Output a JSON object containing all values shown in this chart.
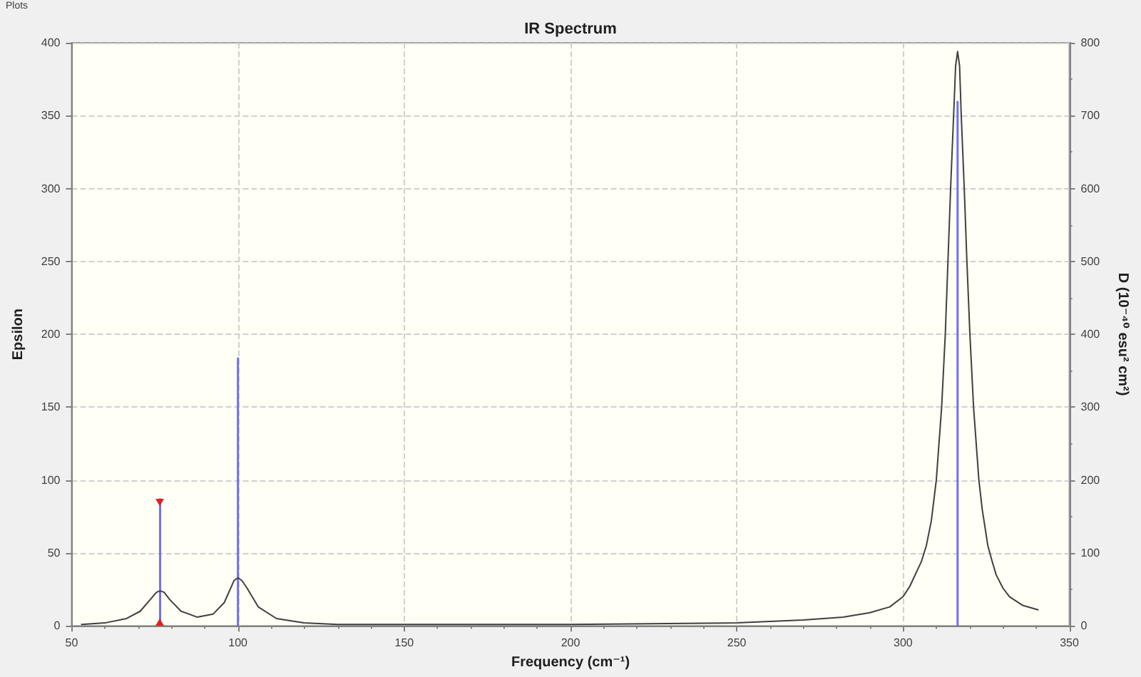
{
  "chart_data": {
    "type": "line",
    "title": "IR Spectrum",
    "xlabel": "Frequency (cm⁻¹)",
    "ylabel": "Epsilon",
    "y2label": "D (10⁻⁴⁰ esu² cm²)",
    "annotations": [
      "Plots"
    ],
    "series": [
      {
        "color": "#404040",
        "x": [
          53,
          60,
          66.5,
          70.6,
          74,
          75.5,
          76.6,
          77.8,
          79.5,
          82.9,
          87.7,
          92.5,
          95.9,
          98.8,
          100,
          101.2,
          102.7,
          106.1,
          111.6,
          119.8,
          130,
          150,
          200,
          250,
          270,
          282,
          290,
          296,
          300,
          302,
          305.5,
          307,
          308.5,
          310,
          311.6,
          312.7,
          313.5,
          314.3,
          315.2,
          315.8,
          316.4,
          317,
          317.5,
          318.4,
          319.2,
          320.1,
          321.2,
          322.8,
          323.8,
          325.5,
          326.7,
          328,
          330,
          332,
          336,
          340.6
        ],
        "values": [
          1,
          2,
          5,
          10,
          19,
          23,
          24,
          23,
          18,
          10,
          6,
          8,
          16,
          31,
          33,
          31,
          26,
          13,
          5,
          2,
          1,
          1,
          1,
          2,
          4,
          6,
          9,
          13,
          20,
          27,
          44,
          55,
          72,
          100,
          150,
          200,
          250,
          300,
          350,
          384,
          394,
          384,
          350,
          300,
          250,
          200,
          150,
          100,
          80,
          55,
          45,
          35,
          26,
          20,
          14,
          11
        ]
      },
      {
        "type": "bar",
        "color": "#7070f0",
        "axis": "y2",
        "x": [
          76.6,
          100,
          316.4
        ],
        "values": [
          175,
          368,
          720
        ]
      }
    ],
    "xlim": [
      50,
      350
    ],
    "xticks": [
      50,
      {
        "value": 60,
        "label": null
      },
      {
        "value": 70,
        "label": null
      },
      {
        "value": 80,
        "label": null
      },
      {
        "value": 90,
        "label": null
      },
      100,
      {
        "value": 110,
        "label": null
      },
      {
        "value": 120,
        "label": null
      },
      {
        "value": 130,
        "label": null
      },
      {
        "value": 140,
        "label": null
      },
      150,
      {
        "value": 160,
        "label": null
      },
      {
        "value": 170,
        "label": null
      },
      {
        "value": 180,
        "label": null
      },
      {
        "value": 190,
        "label": null
      },
      200,
      {
        "value": 210,
        "label": null
      },
      {
        "value": 220,
        "label": null
      },
      {
        "value": 230,
        "label": null
      },
      {
        "value": 240,
        "label": null
      },
      250,
      {
        "value": 260,
        "label": null
      },
      {
        "value": 270,
        "label": null
      },
      {
        "value": 280,
        "label": null
      },
      {
        "value": 290,
        "label": null
      },
      300,
      {
        "value": 310,
        "label": null
      },
      {
        "value": 320,
        "label": null
      },
      {
        "value": 330,
        "label": null
      },
      {
        "value": 340,
        "label": null
      },
      350
    ],
    "ylim": [
      0,
      400
    ],
    "yticks": [
      0,
      50,
      100,
      150,
      200,
      250,
      300,
      350,
      400
    ],
    "y2lim": [
      0,
      800
    ],
    "y2ticks": [
      0,
      {
        "value": 50,
        "label": null
      },
      100,
      {
        "value": 150,
        "label": null
      },
      200,
      {
        "value": 250,
        "label": null
      },
      300,
      {
        "value": 350,
        "label": null
      },
      400,
      {
        "value": 450,
        "label": null
      },
      500,
      {
        "value": 550,
        "label": null
      },
      600,
      {
        "value": 650,
        "label": null
      },
      700,
      {
        "value": 750,
        "label": null
      },
      800
    ],
    "grid": true,
    "marker": "none",
    "line_style": "solid"
  }
}
